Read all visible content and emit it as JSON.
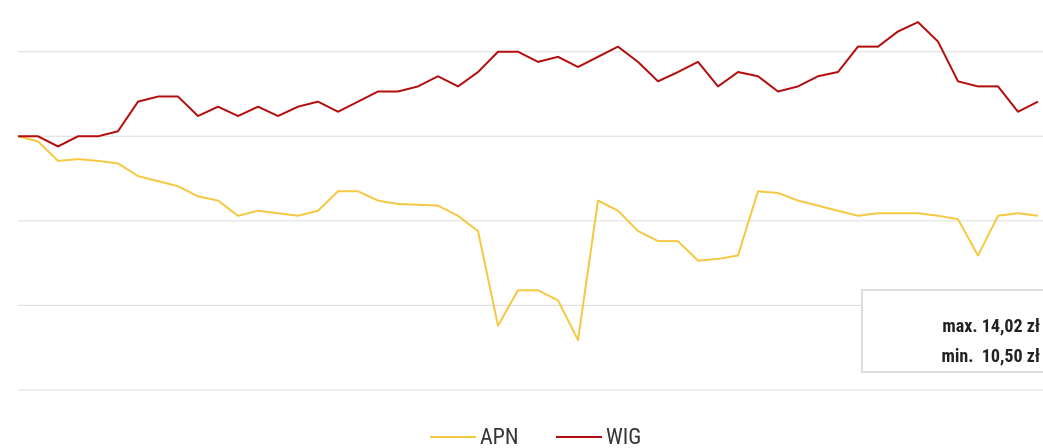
{
  "chart_data": {
    "type": "line",
    "x": [
      0,
      1,
      2,
      3,
      4,
      5,
      6,
      7,
      8,
      9,
      10,
      11,
      12,
      13,
      14,
      15,
      16,
      17,
      18,
      19,
      20,
      21,
      22,
      23,
      24,
      25,
      26,
      27,
      28,
      29,
      30,
      31,
      32,
      33,
      34,
      35,
      36,
      37,
      38,
      39,
      40,
      41,
      42,
      43,
      44,
      45,
      46,
      47,
      48,
      49,
      50,
      51
    ],
    "xlim": [
      0,
      51.25
    ],
    "ylim": [
      0,
      4.6
    ],
    "yticks": [
      0,
      1,
      2,
      3,
      4
    ],
    "grid": true,
    "legend": "bottom",
    "series": [
      {
        "name": "APN",
        "color": "#f5c842",
        "values": [
          3.0,
          2.94,
          2.71,
          2.73,
          2.71,
          2.68,
          2.53,
          2.47,
          2.41,
          2.29,
          2.24,
          2.06,
          2.12,
          2.09,
          2.06,
          2.12,
          2.35,
          2.35,
          2.24,
          2.2,
          2.19,
          2.18,
          2.06,
          1.88,
          0.76,
          1.18,
          1.18,
          1.06,
          0.59,
          2.24,
          2.12,
          1.88,
          1.76,
          1.76,
          1.53,
          1.55,
          1.59,
          2.35,
          2.33,
          2.24,
          2.18,
          2.12,
          2.06,
          2.09,
          2.09,
          2.09,
          2.06,
          2.02,
          1.59,
          2.06,
          2.09,
          2.06
        ]
      },
      {
        "name": "WIG",
        "color": "#b30d0d",
        "values": [
          3.0,
          3.0,
          2.88,
          3.0,
          3.0,
          3.06,
          3.41,
          3.47,
          3.47,
          3.24,
          3.35,
          3.24,
          3.35,
          3.24,
          3.35,
          3.41,
          3.29,
          3.41,
          3.53,
          3.53,
          3.59,
          3.71,
          3.59,
          3.76,
          4.0,
          4.0,
          3.88,
          3.94,
          3.82,
          3.94,
          4.06,
          3.88,
          3.65,
          3.76,
          3.88,
          3.59,
          3.76,
          3.71,
          3.53,
          3.59,
          3.71,
          3.76,
          4.06,
          4.06,
          4.24,
          4.35,
          4.12,
          3.65,
          3.59,
          3.59,
          3.29,
          3.41
        ]
      }
    ],
    "annotations": [
      "max. 14,02 zł",
      "min.  10,50 zł"
    ]
  }
}
